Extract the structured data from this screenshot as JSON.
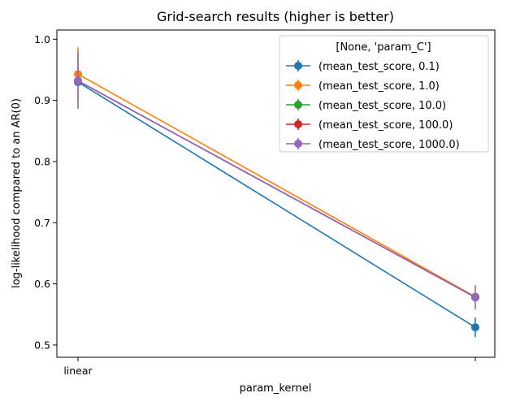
{
  "chart_data": {
    "type": "line",
    "title": "Grid-search results (higher is better)",
    "xlabel": "param_kernel",
    "ylabel": "log-likelihood compared to an AR(0)",
    "categories": [
      "linear",
      ""
    ],
    "ylim": [
      0.48,
      1.015
    ],
    "yticks": [
      0.5,
      0.6,
      0.7,
      0.8,
      0.9,
      1.0
    ],
    "ytick_labels": [
      "0.5",
      "0.6",
      "0.7",
      "0.8",
      "0.9",
      "1.0"
    ],
    "grid": false,
    "legend": {
      "title": "[None, 'param_C']",
      "placement": "top-right"
    },
    "series": [
      {
        "name": "(mean_test_score, 0.1)",
        "color": "#1f77b4",
        "values": [
          0.93,
          0.529
        ],
        "errors": [
          0.003,
          0.016
        ]
      },
      {
        "name": "(mean_test_score, 1.0)",
        "color": "#ff7f0e",
        "values": [
          0.943,
          0.579
        ],
        "errors": [
          0.044,
          0.005
        ]
      },
      {
        "name": "(mean_test_score, 10.0)",
        "color": "#2ca02c",
        "values": [
          0.932,
          0.578
        ],
        "errors": [
          0.003,
          0.004
        ]
      },
      {
        "name": "(mean_test_score, 100.0)",
        "color": "#d62728",
        "values": [
          0.932,
          0.578
        ],
        "errors": [
          0.003,
          0.004
        ]
      },
      {
        "name": "(mean_test_score, 1000.0)",
        "color": "#9467bd",
        "values": [
          0.932,
          0.578
        ],
        "errors": [
          0.046,
          0.02
        ]
      }
    ]
  }
}
